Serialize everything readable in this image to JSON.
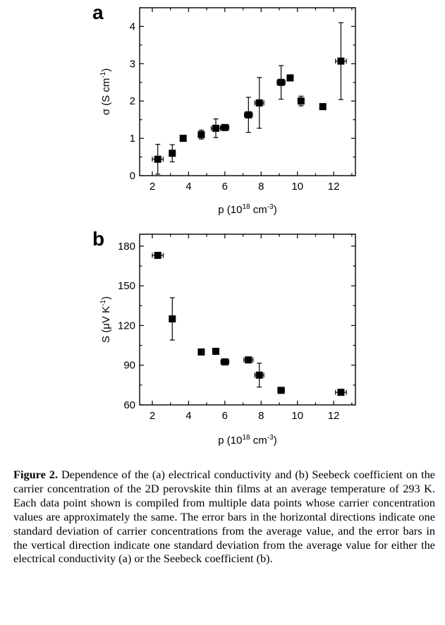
{
  "chart_data": [
    {
      "type": "scatter",
      "panel_label": "a",
      "xlabel": "p (10",
      "xlabel_sup": "18",
      "xlabel_tail": " cm",
      "xlabel_sup2": "-3",
      "xlabel_close": ")",
      "ylabel": "σ (S cm",
      "ylabel_sup": "-1",
      "ylabel_close": ")",
      "xlim": [
        1.3,
        13.2
      ],
      "ylim": [
        0,
        4.5
      ],
      "xticks": [
        2,
        4,
        6,
        8,
        10,
        12
      ],
      "yticks": [
        0,
        1,
        2,
        3,
        4
      ],
      "xtick_labels": [
        "2",
        "4",
        "6",
        "8",
        "10",
        "12"
      ],
      "ytick_labels": [
        "0",
        "1",
        "2",
        "3",
        "4"
      ],
      "points": [
        {
          "x": 2.3,
          "y": 0.44,
          "xerr": 0.3,
          "yerr": 0.4
        },
        {
          "x": 3.1,
          "y": 0.6,
          "xerr": 0.12,
          "yerr": 0.23
        },
        {
          "x": 3.7,
          "y": 1.0,
          "xerr": 0.05,
          "yerr": 0.03
        },
        {
          "x": 4.7,
          "y": 1.1,
          "xerr": 0.12,
          "yerr": 0.12
        },
        {
          "x": 5.5,
          "y": 1.27,
          "xerr": 0.25,
          "yerr": 0.25
        },
        {
          "x": 6.0,
          "y": 1.29,
          "xerr": 0.22,
          "yerr": 0.06
        },
        {
          "x": 7.3,
          "y": 1.63,
          "xerr": 0.22,
          "yerr": 0.47
        },
        {
          "x": 7.9,
          "y": 1.95,
          "xerr": 0.25,
          "yerr": 0.68
        },
        {
          "x": 9.1,
          "y": 2.5,
          "xerr": 0.22,
          "yerr": 0.45
        },
        {
          "x": 9.6,
          "y": 2.62,
          "xerr": 0.05,
          "yerr": 0.03
        },
        {
          "x": 10.2,
          "y": 2.0,
          "xerr": 0.05,
          "yerr": 0.13
        },
        {
          "x": 11.4,
          "y": 1.85,
          "xerr": 0.08,
          "yerr": 0.03
        },
        {
          "x": 12.4,
          "y": 3.07,
          "xerr": 0.3,
          "yerr": 1.03
        }
      ]
    },
    {
      "type": "scatter",
      "panel_label": "b",
      "xlabel": "p (10",
      "xlabel_sup": "18",
      "xlabel_tail": " cm",
      "xlabel_sup2": "-3",
      "xlabel_close": ")",
      "ylabel": "S (μV K",
      "ylabel_sup": "-1",
      "ylabel_close": ")",
      "xlim": [
        1.3,
        13.2
      ],
      "ylim": [
        60,
        189
      ],
      "xticks": [
        2,
        4,
        6,
        8,
        10,
        12
      ],
      "yticks": [
        60,
        90,
        120,
        150,
        180
      ],
      "xtick_labels": [
        "2",
        "4",
        "6",
        "8",
        "10",
        "12"
      ],
      "ytick_labels": [
        "60",
        "90",
        "120",
        "150",
        "180"
      ],
      "points": [
        {
          "x": 2.3,
          "y": 173,
          "xerr": 0.3,
          "yerr": 1
        },
        {
          "x": 3.1,
          "y": 125,
          "xerr": 0.05,
          "yerr": 16
        },
        {
          "x": 4.7,
          "y": 100,
          "xerr": 0.05,
          "yerr": 1
        },
        {
          "x": 5.5,
          "y": 100.5,
          "xerr": 0.05,
          "yerr": 1
        },
        {
          "x": 6.0,
          "y": 92.5,
          "xerr": 0.22,
          "yerr": 2
        },
        {
          "x": 7.3,
          "y": 94,
          "xerr": 0.25,
          "yerr": 1.5
        },
        {
          "x": 7.9,
          "y": 82.5,
          "xerr": 0.25,
          "yerr": 9
        },
        {
          "x": 9.1,
          "y": 71,
          "xerr": 0.18,
          "yerr": 1.5
        },
        {
          "x": 12.4,
          "y": 69.5,
          "xerr": 0.3,
          "yerr": 1
        }
      ]
    }
  ],
  "caption": {
    "label": "Figure 2.",
    "text": " Dependence of the (a) electrical conductivity and (b) Seebeck coefficient on the carrier concentration of the 2D perovskite thin films at an average temperature of 293 K. Each data point shown is compiled from multiple data points whose carrier concentration values are approximately the same. The error bars in the horizontal directions indicate one standard deviation of carrier concentrations from the average value, and the error bars in the vertical direction indicate one standard deviation from the average value for either the electrical conductivity (a) or the Seebeck coefficient (b)."
  }
}
